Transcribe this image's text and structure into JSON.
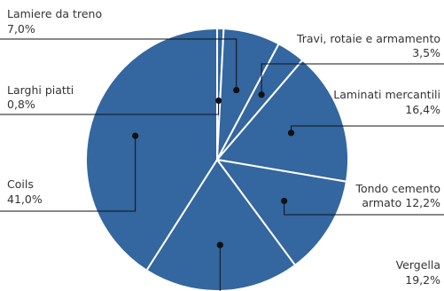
{
  "chart_data": {
    "type": "pie",
    "slices": [
      {
        "label": "Larghi piatti",
        "value_text": "0,8%",
        "value": 0.8
      },
      {
        "label": "Lamiere da treno",
        "value_text": "7,0%",
        "value": 7.0
      },
      {
        "label": "Travi, rotaie e armamento",
        "value_text": "3,5%",
        "value": 3.5
      },
      {
        "label": "Laminati mercantili",
        "value_text": "16,4%",
        "value": 16.4
      },
      {
        "label": "Tondo cemento armato",
        "label_lines": [
          "Tondo cemento",
          "armato"
        ],
        "value_text": "12,2%",
        "value": 12.2
      },
      {
        "label": "Vergella",
        "value_text": "19,2%",
        "value": 19.2
      },
      {
        "label": "Coils",
        "value_text": "41,0%",
        "value": 41.0
      }
    ],
    "colors": {
      "slice": "#3466a0",
      "border": "#ffffff",
      "leader": "#111111",
      "text": "#333333"
    }
  }
}
